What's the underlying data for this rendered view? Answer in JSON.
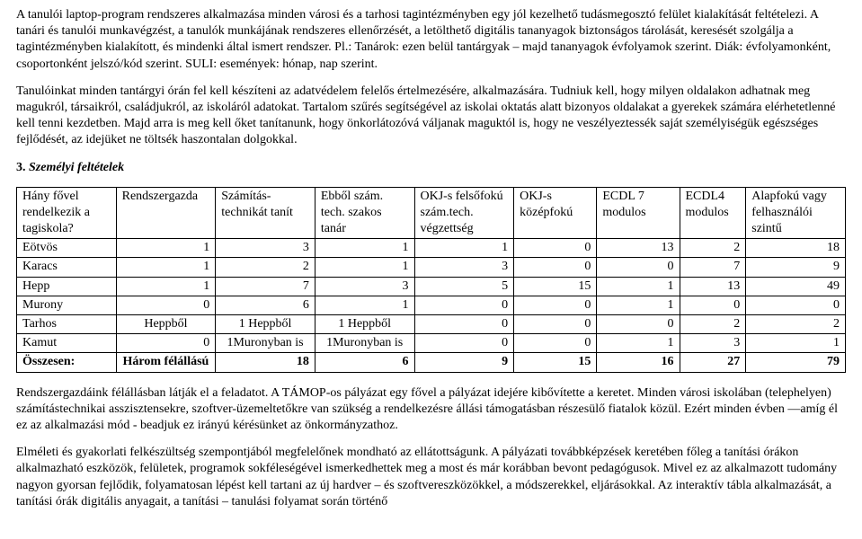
{
  "para1": "A tanulói laptop-program rendszeres alkalmazása minden városi és a tarhosi tagintézményben egy jól kezelhető tudásmegosztó felület kialakítását feltételezi. A tanári és tanulói munkavégzést, a tanulók munkájának rendszeres ellenőrzését, a letölthető digitális tananyagok biztonságos tárolását, keresését szolgálja a tagintézményben kialakított, és mindenki által ismert rendszer. Pl.: Tanárok: ezen belül tantárgyak – majd tananyagok évfolyamok szerint. Diák: évfolyamonként, csoportonként jelszó/kód szerint. SULI: események: hónap, nap szerint.",
  "para2": "Tanulóinkat minden tantárgyi órán fel kell készíteni az adatvédelem felelős értelmezésére, alkalmazására. Tudniuk kell, hogy milyen oldalakon adhatnak meg magukról, társaikról, családjukról, az iskoláról adatokat. Tartalom szűrés segítségével az iskolai oktatás alatt bizonyos oldalakat a gyerekek számára elérhetetlenné kell tenni kezdetben. Majd arra is meg kell őket tanítanunk, hogy önkorlátozóvá váljanak maguktól is, hogy ne veszélyeztessék saját személyiségük egészséges fejlődését, az idejüket ne töltsék haszontalan dolgokkal.",
  "section_num": "3.",
  "section_title": "Személyi feltételek",
  "headers": [
    "Hány fővel rendelkezik a tagiskola?",
    "Rendszergazda",
    "Számítás-technikát tanít",
    "Ebből szám. tech. szakos tanár",
    "OKJ-s felsőfokú szám.tech. végzettség",
    "OKJ-s középfokú",
    "ECDL 7 modulos",
    "ECDL4 modulos",
    "Alapfokú vagy felhasználói szintű"
  ],
  "rows": [
    {
      "name": "Eötvös",
      "c": [
        "1",
        "3",
        "1",
        "1",
        "0",
        "13",
        "2",
        "18"
      ]
    },
    {
      "name": "Karacs",
      "c": [
        "1",
        "2",
        "1",
        "3",
        "0",
        "0",
        "7",
        "9"
      ]
    },
    {
      "name": "Hepp",
      "c": [
        "1",
        "7",
        "3",
        "5",
        "15",
        "1",
        "13",
        "49"
      ]
    },
    {
      "name": "Murony",
      "c": [
        "0",
        "6",
        "1",
        "0",
        "0",
        "1",
        "0",
        "0"
      ]
    },
    {
      "name": "Tarhos",
      "c": [
        "Heppből",
        "1 Heppből",
        "1 Heppből",
        "0",
        "0",
        "0",
        "2",
        "2"
      ]
    },
    {
      "name": "Kamut",
      "c": [
        "0",
        "1Muronyban is",
        "1Muronyban is",
        "0",
        "0",
        "1",
        "3",
        "1"
      ]
    }
  ],
  "sum": {
    "name": "Összesen:",
    "c": [
      "Három félállású",
      "18",
      "6",
      "9",
      "15",
      "16",
      "27",
      "79"
    ]
  },
  "para3": "Rendszergazdáink félállásban látják el a feladatot. A TÁMOP-os pályázat egy fővel a pályázat idejére kibővítette a keretet. Minden városi iskolában (telephelyen) számítástechnikai asszisztensekre, szoftver-üzemeltetőkre van szükség a rendelkezésre állási támogatásban részesülő fiatalok közül. Ezért minden évben —amíg él ez az alkalmazási mód - beadjuk ez irányú kérésünket az önkormányzathoz.",
  "para4": "Elméleti és gyakorlati felkészültség szempontjából megfelelőnek mondható az ellátottságunk. A pályázati továbbképzések keretében főleg a tanítási órákon alkalmazható eszközök, felületek, programok sokféleségével ismerkedhettek meg a most és már korábban bevont pedagógusok. Mivel ez az alkalmazott tudomány nagyon gyorsan fejlődik, folyamatosan lépést kell tartani az új hardver – és szoftvereszközökkel, a módszerekkel, eljárásokkal. Az interaktív tábla alkalmazását, a tanítási órák digitális anyagait, a tanítási – tanulási folyamat során történő"
}
